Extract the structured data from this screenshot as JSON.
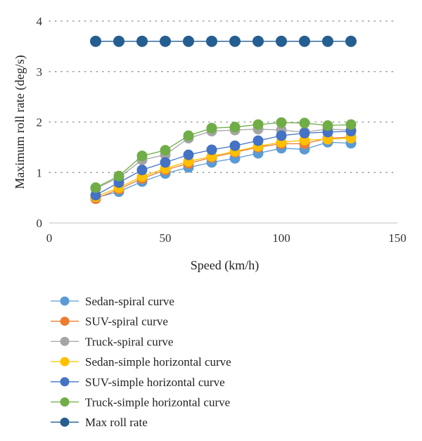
{
  "chart_data": {
    "type": "line",
    "title": "",
    "xlabel": "Speed (km/h)",
    "ylabel": "Maximum roll rate (deg/s)",
    "xlim": [
      0,
      150
    ],
    "ylim": [
      0,
      4
    ],
    "x_ticks": [
      0,
      50,
      100,
      150
    ],
    "y_ticks": [
      0,
      1,
      2,
      3,
      4
    ],
    "grid": "horizontal-dotted",
    "legend_position": "bottom",
    "x": [
      20,
      30,
      40,
      50,
      60,
      70,
      80,
      90,
      100,
      110,
      120,
      130
    ],
    "series": [
      {
        "name": "Sedan-spiral curve",
        "color": "#5B9BD5",
        "values": [
          0.5,
          0.62,
          0.82,
          0.98,
          1.1,
          1.2,
          1.28,
          1.38,
          1.48,
          1.46,
          1.6,
          1.58
        ]
      },
      {
        "name": "SUV-spiral curve",
        "color": "#ED7D31",
        "values": [
          0.48,
          0.67,
          0.88,
          1.05,
          1.18,
          1.3,
          1.4,
          1.5,
          1.57,
          1.57,
          1.68,
          1.7
        ]
      },
      {
        "name": "Truck-spiral curve",
        "color": "#A5A5A5",
        "values": [
          0.68,
          0.9,
          1.25,
          1.35,
          1.68,
          1.82,
          1.84,
          1.86,
          1.84,
          1.8,
          1.86,
          1.84
        ]
      },
      {
        "name": "Sedan-simple horizontal curve",
        "color": "#FFC000",
        "values": [
          0.52,
          0.7,
          0.92,
          1.08,
          1.22,
          1.32,
          1.42,
          1.52,
          1.6,
          1.64,
          1.66,
          1.68
        ]
      },
      {
        "name": "SUV-simple horizontal curve",
        "color": "#4472C4",
        "values": [
          0.55,
          0.8,
          1.05,
          1.2,
          1.35,
          1.45,
          1.53,
          1.63,
          1.73,
          1.78,
          1.8,
          1.82
        ]
      },
      {
        "name": "Truck-simple horizontal curve",
        "color": "#70AD47",
        "values": [
          0.7,
          0.93,
          1.33,
          1.44,
          1.73,
          1.88,
          1.9,
          1.95,
          1.99,
          1.98,
          1.93,
          1.95
        ]
      },
      {
        "name": "Max roll rate",
        "color": "#255E91",
        "values": [
          3.6,
          3.6,
          3.6,
          3.6,
          3.6,
          3.6,
          3.6,
          3.6,
          3.6,
          3.6,
          3.6,
          3.6
        ]
      }
    ]
  }
}
